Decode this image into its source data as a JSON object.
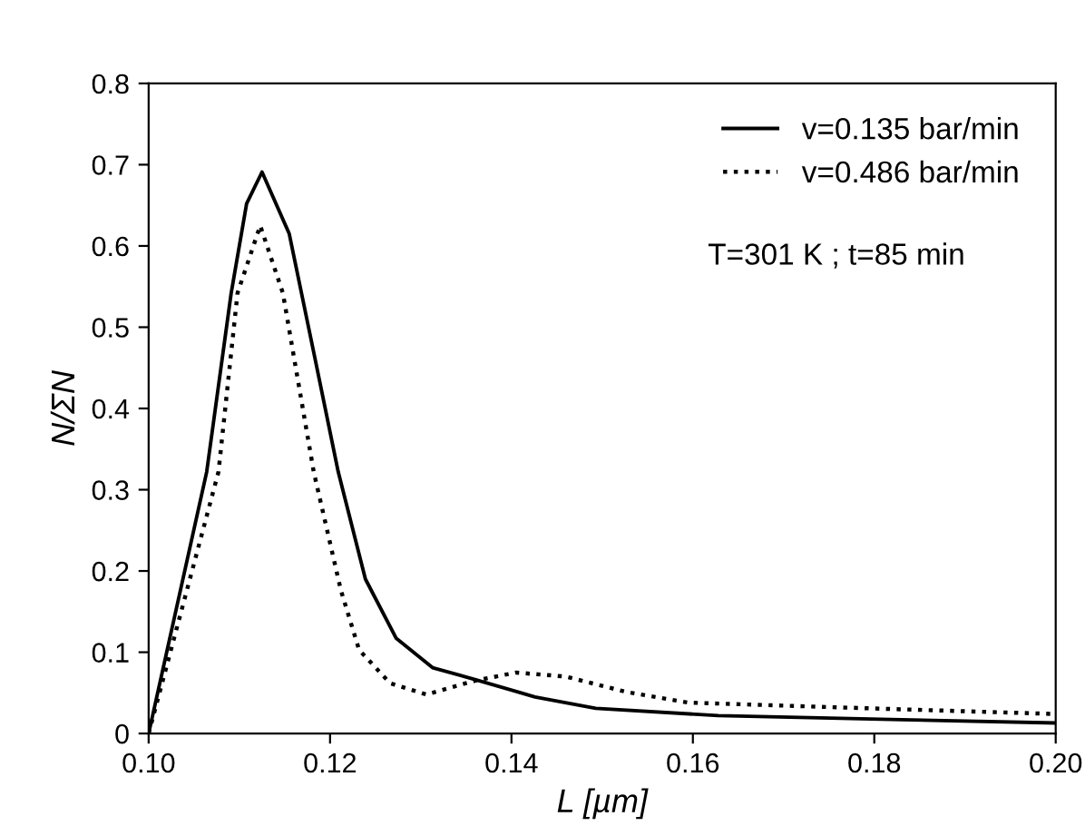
{
  "chart_data": {
    "type": "line",
    "xlabel": "L [µm]",
    "ylabel": "N/ΣN",
    "annotations": [
      "T=301 K ; t=85 min"
    ],
    "series": [
      {
        "name": "v=0.135 bar/min",
        "color": "#000000",
        "line_style": "solid",
        "x": [
          0.1,
          0.1064,
          0.1091,
          0.1108,
          0.1125,
          0.1155,
          0.1182,
          0.1209,
          0.1239,
          0.1273,
          0.1313,
          0.1358,
          0.1426,
          0.1493,
          0.1628,
          0.183,
          0.2
        ],
        "values": [
          0,
          0.322,
          0.542,
          0.652,
          0.691,
          0.615,
          0.469,
          0.322,
          0.19,
          0.117,
          0.081,
          0.067,
          0.045,
          0.031,
          0.022,
          0.017,
          0.013
        ]
      },
      {
        "name": "v=0.486 bar/min",
        "color": "#000000",
        "line_style": "dotted",
        "x": [
          0.1,
          0.1077,
          0.1098,
          0.1123,
          0.1148,
          0.1182,
          0.1212,
          0.1232,
          0.1266,
          0.1306,
          0.136,
          0.1405,
          0.146,
          0.1527,
          0.1595,
          0.1764,
          0.2
        ],
        "values": [
          0,
          0.322,
          0.542,
          0.625,
          0.542,
          0.322,
          0.176,
          0.103,
          0.062,
          0.048,
          0.065,
          0.075,
          0.07,
          0.051,
          0.038,
          0.032,
          0.024
        ]
      }
    ],
    "xlim": [
      0.1,
      0.2
    ],
    "xticks": [
      {
        "value": 0.1,
        "label": "0.10"
      },
      {
        "value": 0.12,
        "label": "0.12"
      },
      {
        "value": 0.14,
        "label": "0.14"
      },
      {
        "value": 0.16,
        "label": "0.16"
      },
      {
        "value": 0.18,
        "label": "0.18"
      },
      {
        "value": 0.2,
        "label": "0.20"
      }
    ],
    "ylim": [
      0,
      0.8
    ],
    "yticks": [
      0,
      0.1,
      0.2,
      0.3,
      0.4,
      0.5,
      0.6,
      0.7,
      0.8
    ],
    "legend": "top right",
    "grid": false,
    "marker": "none"
  }
}
